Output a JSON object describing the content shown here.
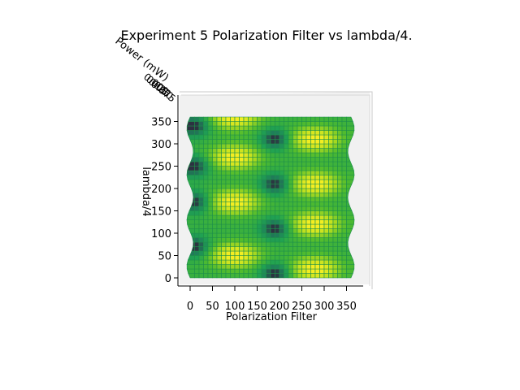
{
  "chart_data": {
    "type": "surface",
    "title": "Experiment 5 Polarization Filter vs lambda/4.",
    "xlabel": "Polarization Filter",
    "ylabel": "lambda/4",
    "zlabel": "Power (mW)",
    "x_ticks": [
      "0",
      "50",
      "100",
      "150",
      "200",
      "250",
      "300",
      "350"
    ],
    "y_ticks": [
      "0",
      "50",
      "100",
      "150",
      "200",
      "250",
      "300",
      "350"
    ],
    "z_ticks": [
      "0.000",
      "0.025",
      "0.050",
      "0.075"
    ],
    "xlim": [
      0,
      360
    ],
    "ylim": [
      0,
      360
    ],
    "grid_step": 10,
    "view": "top-down (elevation 90)",
    "colormap": [
      "#2d2d3f",
      "#1f7f5a",
      "#20a352",
      "#4fbb2e",
      "#b3dd1e",
      "#f4ee22"
    ],
    "edge_color": "#1e8f4a",
    "peaks_xy": [
      [
        100,
        50
      ],
      [
        100,
        170
      ],
      [
        100,
        270
      ],
      [
        100,
        360
      ],
      [
        280,
        20
      ],
      [
        280,
        120
      ],
      [
        280,
        210
      ],
      [
        280,
        310
      ]
    ],
    "troughs_xy": [
      [
        190,
        10
      ],
      [
        190,
        110
      ],
      [
        190,
        210
      ],
      [
        190,
        310
      ],
      [
        10,
        170
      ],
      [
        10,
        250
      ],
      [
        10,
        340
      ],
      [
        10,
        70
      ]
    ]
  }
}
